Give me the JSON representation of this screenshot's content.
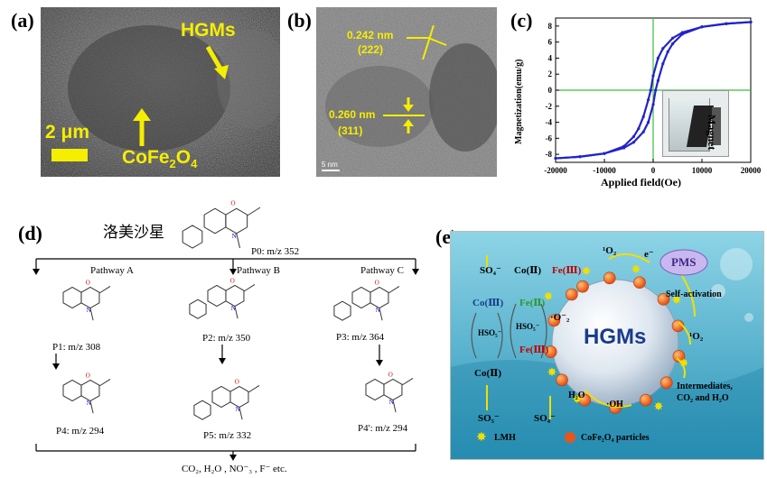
{
  "panel_a": {
    "label": "(a)",
    "hgm_label": "HGMs",
    "scale_label": "2 μm",
    "cofe_label": "CoFe",
    "cofe_sub1": "2",
    "cofe_mid": "O",
    "cofe_sub2": "4"
  },
  "panel_b": {
    "label": "(b)",
    "d1": "0.242 nm",
    "p1": "(222)",
    "d2": "0.260 nm",
    "p2": "(311)",
    "scale": "5 nm"
  },
  "panel_c": {
    "label": "(c)",
    "ylabel": "Magnetization(emu/g)",
    "xlabel": "Applied field(Oe)",
    "inset_text": "Magnet",
    "chart_data": {
      "type": "line",
      "title": "",
      "xlabel": "Applied field(Oe)",
      "ylabel": "Magnetization(emu/g)",
      "xlim": [
        -20000,
        20000
      ],
      "ylim": [
        -9,
        9
      ],
      "xticks": [
        -20000,
        -10000,
        0,
        10000,
        20000
      ],
      "yticks": [
        -8,
        -6,
        -4,
        -2,
        0,
        2,
        4,
        6,
        8
      ],
      "series": [
        {
          "x": [
            -20000,
            -15000,
            -10000,
            -6000,
            -4000,
            -2000,
            -1000,
            0,
            500,
            1000,
            2000,
            3000,
            4000,
            6000,
            10000,
            15000,
            20000
          ],
          "y": [
            -8.5,
            -8.3,
            -7.9,
            -7.2,
            -6.5,
            -5.2,
            -4.0,
            -1.8,
            0,
            1.2,
            3.3,
            4.8,
            5.8,
            7.0,
            7.9,
            8.3,
            8.5
          ]
        },
        {
          "x": [
            20000,
            15000,
            10000,
            6000,
            4000,
            2000,
            1000,
            0,
            -500,
            -1000,
            -2000,
            -3000,
            -4000,
            -6000,
            -10000,
            -15000,
            -20000
          ],
          "y": [
            8.5,
            8.3,
            7.9,
            7.2,
            6.5,
            5.2,
            4.0,
            1.8,
            0,
            -1.2,
            -3.3,
            -4.8,
            -5.8,
            -7.0,
            -7.9,
            -8.3,
            -8.5
          ]
        }
      ]
    }
  },
  "panel_d": {
    "label": "(d)",
    "compound_name": "洛美沙星",
    "p0": "P0: m/z 352",
    "pathway_a": "Pathway A",
    "pathway_b": "Pathway B",
    "pathway_c": "Pathway C",
    "p1": "P1: m/z 308",
    "p2": "P2: m/z 350",
    "p3": "P3: m/z 364",
    "p4": "P4: m/z 294",
    "p5": "P5: m/z 332",
    "p4p": "P4': m/z 294",
    "final": "CO₂, H₂O , NO⁻₃ , F⁻ etc."
  },
  "panel_e": {
    "label": "(e)",
    "center": "HGMs",
    "pms": "PMS",
    "o2_top": "¹O₂",
    "e_minus": "e⁻",
    "self_activation": "Self-activation",
    "o2_right": "¹O₂",
    "intermediates_1": "Intermediates,",
    "intermediates_2": "CO₂ and H₂O",
    "so4_top": "SO₄⁻",
    "co2_left": "Co(Ⅱ)",
    "fe3_top": "Fe(Ⅲ)",
    "co3": "Co(Ⅲ)",
    "fe2": "Fe(Ⅱ)",
    "o2_minus": "·O⁻₂",
    "hso5_1": "HSO₅⁻",
    "hso5_2": "HSO₅⁻",
    "co2_bottom": "Co(Ⅱ)",
    "fe3_bottom": "Fe(Ⅲ)",
    "so5": "SO₅⁻",
    "so4_bottom": "SO₄⁻",
    "h2o": "H₂O",
    "oh": "·OH",
    "lmh": "LMH",
    "particles": "CoFe₂O₄ particles",
    "colors": {
      "water_top": "#8ed4e6",
      "water_bottom": "#2a94b8",
      "particle": "#e8551a",
      "arrow": "#f0e000",
      "pms": "#c9b8f0"
    }
  }
}
